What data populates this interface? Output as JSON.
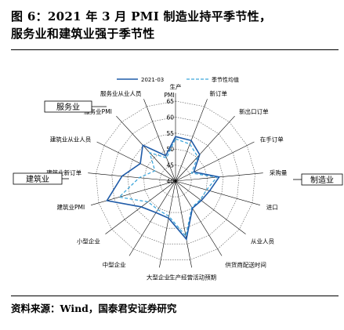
{
  "figure": {
    "title_line1": "图 6：2021 年 3 月 PMI 制造业持平季节性，",
    "title_line2": "服务业和建筑业强于季节性",
    "source": "资料来源：Wind，国泰君安证券研究"
  },
  "group_boxes": {
    "services": "服务业",
    "construction": "建筑业",
    "manufacturing": "制造业"
  },
  "colors": {
    "series_2021": "#1f5ba8",
    "series_seasonal": "#3fa7dc",
    "grid": "#555555",
    "spoke": "#000000"
  },
  "chart_data": {
    "type": "radar",
    "title": "",
    "axis_title": "PMI",
    "rlim": [
      40,
      65
    ],
    "r_ticks": [
      40,
      45,
      50,
      55,
      60,
      65
    ],
    "grid": true,
    "legend_position": "top",
    "categories": [
      "生产",
      "新订单",
      "新出口订单",
      "在手订单",
      "采购量",
      "进口",
      "从业人员",
      "供货商配送时间",
      "生产经营活动预期",
      "大型企业",
      "中型企业",
      "小型企业",
      "建筑业PMI",
      "建筑业新订单",
      "建筑业从业人员",
      "服务业PMI",
      "服务业从业人员"
    ],
    "series": [
      {
        "name": "2021-03",
        "style": "solid",
        "values": [
          53.9,
          53.6,
          51.2,
          46.4,
          53.7,
          51.1,
          50.1,
          50.0,
          58.5,
          51.8,
          51.6,
          53.4,
          62.3,
          56.8,
          52.3,
          55.2,
          48.5
        ]
      },
      {
        "name": "季节性均值",
        "style": "dashed",
        "values": [
          53.2,
          52.4,
          50.3,
          45.6,
          53.0,
          50.1,
          49.7,
          49.7,
          57.5,
          51.2,
          50.5,
          50.8,
          58.3,
          51.4,
          47.2,
          52.0,
          47.8
        ]
      }
    ]
  }
}
